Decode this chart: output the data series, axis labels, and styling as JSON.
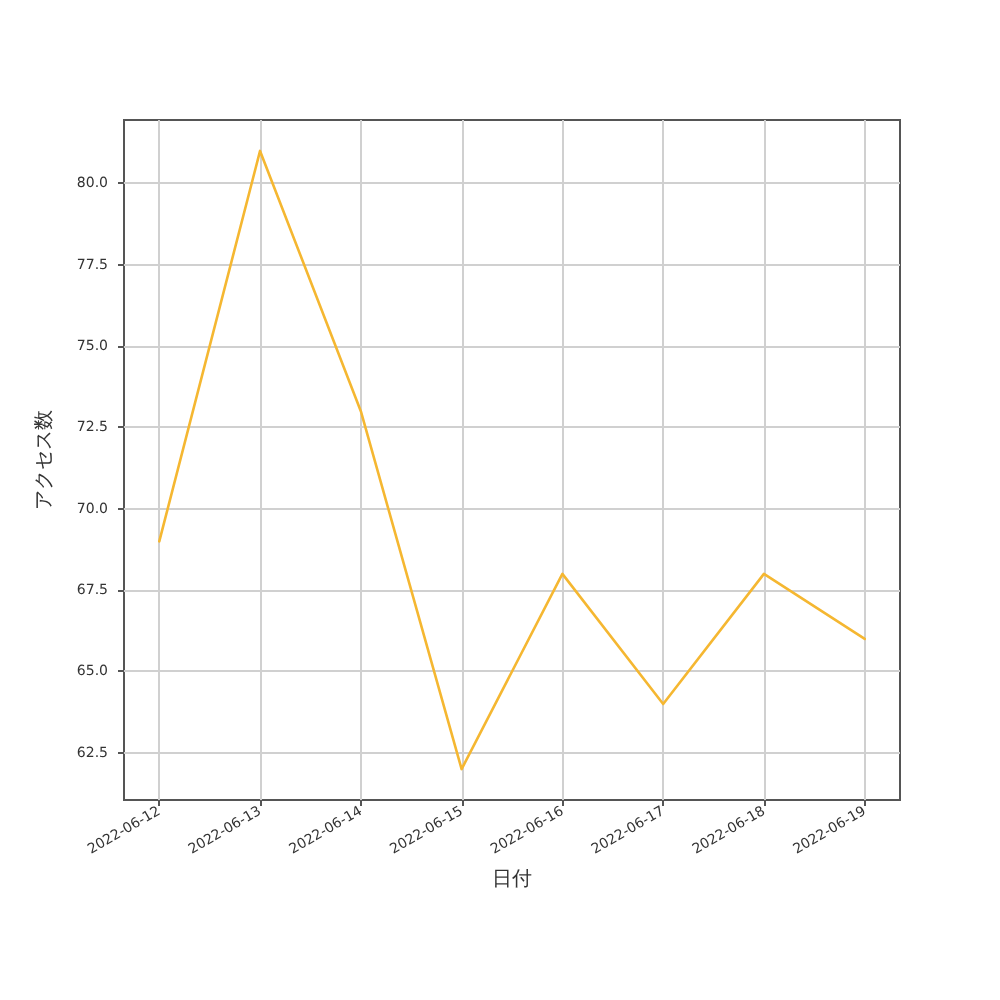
{
  "chart_data": {
    "type": "line",
    "xlabel": "日付",
    "ylabel": "アクセス数",
    "x": [
      "2022-06-12",
      "2022-06-13",
      "2022-06-14",
      "2022-06-15",
      "2022-06-16",
      "2022-06-17",
      "2022-06-18",
      "2022-06-19"
    ],
    "series": [
      {
        "color": "#f5b731",
        "values": [
          69,
          81,
          73,
          62,
          68,
          64,
          68,
          66
        ]
      }
    ],
    "xlim": [
      "2022-06-11T15:36",
      "2022-06-19T08:24"
    ],
    "xticks": [
      "2022-06-12",
      "2022-06-13",
      "2022-06-14",
      "2022-06-15",
      "2022-06-16",
      "2022-06-17",
      "2022-06-18",
      "2022-06-19"
    ],
    "ylim": [
      61.05,
      81.95
    ],
    "yticks": [
      {
        "value": 62.5,
        "label": "62.5"
      },
      {
        "value": 65,
        "label": "65.0"
      },
      {
        "value": 67.5,
        "label": "67.5"
      },
      {
        "value": 70,
        "label": "70.0"
      },
      {
        "value": 72.5,
        "label": "72.5"
      },
      {
        "value": 75,
        "label": "75.0"
      },
      {
        "value": 77.5,
        "label": "77.5"
      },
      {
        "value": 80,
        "label": "80.0"
      }
    ],
    "grid": true,
    "marker": "none",
    "line_style": "solid"
  }
}
